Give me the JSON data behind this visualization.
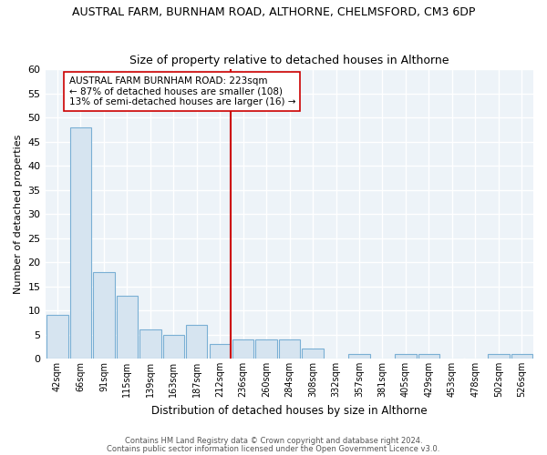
{
  "title": "AUSTRAL FARM, BURNHAM ROAD, ALTHORNE, CHELMSFORD, CM3 6DP",
  "subtitle": "Size of property relative to detached houses in Althorne",
  "xlabel": "Distribution of detached houses by size in Althorne",
  "ylabel": "Number of detached properties",
  "bar_labels": [
    "42sqm",
    "66sqm",
    "91sqm",
    "115sqm",
    "139sqm",
    "163sqm",
    "187sqm",
    "212sqm",
    "236sqm",
    "260sqm",
    "284sqm",
    "308sqm",
    "332sqm",
    "357sqm",
    "381sqm",
    "405sqm",
    "429sqm",
    "453sqm",
    "478sqm",
    "502sqm",
    "526sqm"
  ],
  "bar_values": [
    9,
    48,
    18,
    13,
    6,
    5,
    7,
    3,
    4,
    4,
    4,
    2,
    0,
    1,
    0,
    1,
    1,
    0,
    0,
    1,
    1
  ],
  "bar_color": "#d6e4f0",
  "bar_edgecolor": "#7aafd4",
  "annotation_title": "AUSTRAL FARM BURNHAM ROAD: 223sqm",
  "annotation_line1": "← 87% of detached houses are smaller (108)",
  "annotation_line2": "13% of semi-detached houses are larger (16) →",
  "ylim": [
    0,
    60
  ],
  "yticks": [
    0,
    5,
    10,
    15,
    20,
    25,
    30,
    35,
    40,
    45,
    50,
    55,
    60
  ],
  "footer_line1": "Contains HM Land Registry data © Crown copyright and database right 2024.",
  "footer_line2": "Contains public sector information licensed under the Open Government Licence v3.0.",
  "bg_color": "#ffffff",
  "plot_bg_color": "#edf3f8",
  "grid_color": "#ffffff",
  "ref_line_bar_index": 7
}
